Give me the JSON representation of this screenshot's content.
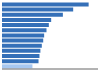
{
  "chart_data": {
    "type": "bar",
    "orientation": "horizontal",
    "values": [
      18.5,
      15.2,
      13.0,
      10.5,
      10.0,
      9.5,
      9.0,
      8.8,
      8.5,
      8.2,
      8.0,
      7.8,
      6.5
    ],
    "colors": [
      "#3570b8",
      "#3570b8",
      "#3570b8",
      "#3570b8",
      "#3570b8",
      "#3570b8",
      "#3570b8",
      "#3570b8",
      "#3570b8",
      "#3570b8",
      "#3570b8",
      "#3570b8",
      "#a8c8f0"
    ],
    "xlim": [
      0,
      20.5
    ],
    "tick_labels": false,
    "grid": false
  }
}
